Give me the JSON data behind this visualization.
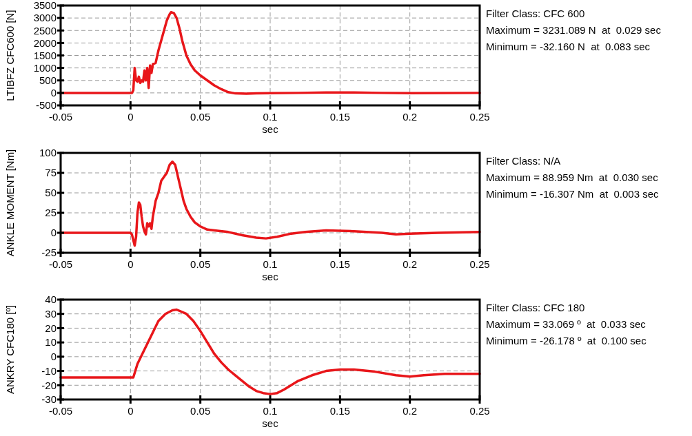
{
  "chart_data": [
    {
      "type": "line",
      "xlabel": "sec",
      "ylabel": "LTIBFZ CFC600 [N]",
      "xlim": [
        -0.05,
        0.25
      ],
      "xticks": [
        -0.05,
        0,
        0.05,
        0.1,
        0.15,
        0.2,
        0.25
      ],
      "ylim": [
        -500,
        3500
      ],
      "yticks": [
        -500,
        0,
        500,
        1000,
        1500,
        2000,
        2500,
        3000,
        3500
      ],
      "grid": true,
      "line_style": "solid",
      "annotations": [
        "Filter Class: CFC 600",
        "Maximum = 3231.089 N  at  0.029 sec",
        "Minimum = -32.160 N  at  0.083 sec"
      ],
      "series": [
        {
          "color": "#e8161a",
          "x": [
            -0.05,
            0,
            0.001,
            0.002,
            0.003,
            0.004,
            0.005,
            0.006,
            0.007,
            0.008,
            0.009,
            0.01,
            0.011,
            0.012,
            0.013,
            0.014,
            0.015,
            0.016,
            0.018,
            0.02,
            0.022,
            0.024,
            0.026,
            0.028,
            0.029,
            0.031,
            0.033,
            0.035,
            0.037,
            0.04,
            0.043,
            0.046,
            0.05,
            0.055,
            0.06,
            0.065,
            0.07,
            0.075,
            0.083,
            0.09,
            0.1,
            0.12,
            0.14,
            0.16,
            0.18,
            0.2,
            0.25
          ],
          "values": [
            0,
            0,
            0,
            100,
            1000,
            500,
            450,
            650,
            400,
            500,
            450,
            900,
            500,
            1000,
            200,
            1100,
            800,
            1150,
            1200,
            1700,
            2100,
            2500,
            2900,
            3150,
            3230,
            3200,
            3000,
            2600,
            2100,
            1500,
            1150,
            900,
            700,
            500,
            300,
            150,
            30,
            -20,
            -30,
            -20,
            -10,
            0,
            20,
            20,
            0,
            -10,
            0
          ]
        }
      ]
    },
    {
      "type": "line",
      "xlabel": "sec",
      "ylabel": "ANKLE MOMENT [Nm]",
      "xlim": [
        -0.05,
        0.25
      ],
      "xticks": [
        -0.05,
        0,
        0.05,
        0.1,
        0.15,
        0.2,
        0.25
      ],
      "ylim": [
        -25,
        100
      ],
      "yticks": [
        -25,
        0,
        25,
        50,
        75,
        100
      ],
      "grid": true,
      "line_style": "solid",
      "annotations": [
        "Filter Class: N/A",
        "Maximum = 88.959 Nm  at  0.030 sec",
        "Minimum = -16.307 Nm  at  0.003 sec"
      ],
      "series": [
        {
          "color": "#e8161a",
          "x": [
            -0.05,
            0,
            0.001,
            0.003,
            0.004,
            0.005,
            0.006,
            0.007,
            0.008,
            0.009,
            0.01,
            0.011,
            0.012,
            0.013,
            0.014,
            0.015,
            0.016,
            0.018,
            0.02,
            0.022,
            0.024,
            0.026,
            0.028,
            0.03,
            0.032,
            0.034,
            0.036,
            0.038,
            0.04,
            0.043,
            0.046,
            0.05,
            0.055,
            0.06,
            0.07,
            0.08,
            0.09,
            0.097,
            0.105,
            0.115,
            0.125,
            0.14,
            0.16,
            0.18,
            0.19,
            0.2,
            0.22,
            0.25
          ],
          "values": [
            0,
            0,
            -2,
            -16,
            -5,
            25,
            38,
            35,
            20,
            8,
            2,
            -2,
            12,
            8,
            12,
            5,
            20,
            40,
            50,
            65,
            70,
            75,
            85,
            89,
            85,
            70,
            55,
            40,
            30,
            20,
            13,
            8,
            4,
            3,
            1,
            -3,
            -6,
            -7,
            -5,
            -1,
            1,
            3,
            2,
            0,
            -2,
            -1,
            0,
            1
          ]
        }
      ]
    },
    {
      "type": "line",
      "xlabel": "sec",
      "ylabel": "ANKRY CFC180 [º]",
      "xlim": [
        -0.05,
        0.25
      ],
      "xticks": [
        -0.05,
        0,
        0.05,
        0.1,
        0.15,
        0.2,
        0.25
      ],
      "ylim": [
        -30,
        40
      ],
      "yticks": [
        -30,
        -20,
        -10,
        0,
        10,
        20,
        30,
        40
      ],
      "grid": true,
      "line_style": "solid",
      "annotations": [
        "Filter Class: CFC 180",
        "Maximum = 33.069 º  at  0.033 sec",
        "Minimum = -26.178 º  at  0.100 sec"
      ],
      "series": [
        {
          "color": "#e8161a",
          "x": [
            -0.05,
            0.002,
            0.005,
            0.01,
            0.015,
            0.02,
            0.025,
            0.03,
            0.033,
            0.04,
            0.045,
            0.05,
            0.055,
            0.06,
            0.065,
            0.07,
            0.075,
            0.08,
            0.085,
            0.09,
            0.095,
            0.1,
            0.105,
            0.11,
            0.12,
            0.13,
            0.14,
            0.15,
            0.16,
            0.175,
            0.19,
            0.2,
            0.21,
            0.225,
            0.25
          ],
          "values": [
            -14.5,
            -14.5,
            -5,
            5,
            15,
            25,
            30,
            32.5,
            33,
            30,
            25,
            18,
            10,
            2,
            -4,
            -9,
            -13,
            -17,
            -21,
            -24,
            -25.5,
            -26.2,
            -25.5,
            -23,
            -17,
            -13,
            -10,
            -9,
            -9,
            -10.5,
            -13,
            -14,
            -13,
            -12,
            -12
          ]
        }
      ]
    }
  ]
}
